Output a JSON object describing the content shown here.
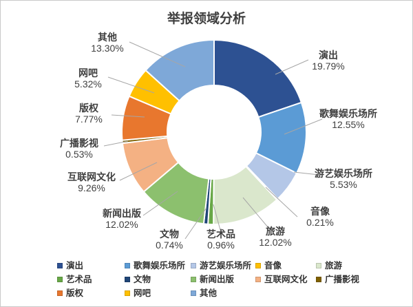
{
  "title": "举报领域分析",
  "chart_data": {
    "type": "pie",
    "subtype": "donut",
    "title": "举报领域分析",
    "unit": "%",
    "categories": [
      "演出",
      "歌舞娱乐场所",
      "游艺娱乐场所",
      "音像",
      "旅游",
      "艺术品",
      "文物",
      "新闻出版",
      "互联网文化",
      "广播影视",
      "版权",
      "网吧",
      "其他"
    ],
    "values": [
      19.79,
      12.55,
      5.53,
      0.21,
      12.02,
      0.96,
      0.74,
      12.02,
      9.26,
      0.53,
      7.77,
      5.32,
      13.3
    ],
    "labels": [
      "19.79%",
      "12.55%",
      "5.53%",
      "0.21%",
      "12.02%",
      "0.96%",
      "0.74%",
      "12.02%",
      "9.26%",
      "0.53%",
      "7.77%",
      "5.32%",
      "13.30%"
    ],
    "colors": [
      "#2D5192",
      "#5B9BD5",
      "#B4C7E7",
      "#FFC000",
      "#DAE7CC",
      "#68A847",
      "#1F4577",
      "#8CC06E",
      "#F4B183",
      "#7F6000",
      "#E8772E",
      "#FFC000",
      "#7EA8D8"
    ],
    "start_angle_deg": 0,
    "direction": "clockwise",
    "donut_hole_ratio": 0.51,
    "slice_border_color": "#FFFFFF",
    "leader_line_color": "#A6A6A6",
    "label_text_color": "#3F3F3F",
    "legend_position": "bottom",
    "grid": false
  }
}
